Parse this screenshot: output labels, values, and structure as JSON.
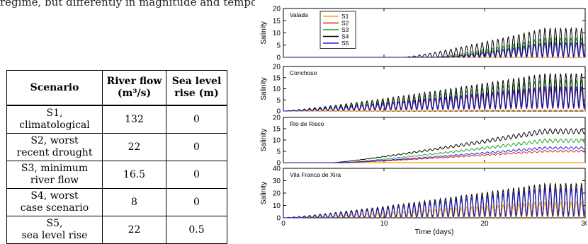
{
  "top_text": "regime, but differently in magnitude and temporal varying",
  "table": {
    "headers": [
      "Scenario",
      "River flow (m³/s)",
      "Sea level rise (m)"
    ],
    "header_lines": [
      [
        "Scenario"
      ],
      [
        "River flow",
        "(m³/s)"
      ],
      [
        "Sea level",
        "rise (m)"
      ]
    ],
    "rows": [
      {
        "scenario": [
          "S1,",
          "climatological"
        ],
        "flow": "132",
        "slr": "0"
      },
      {
        "scenario": [
          "S2, worst",
          "recent drought"
        ],
        "flow": "22",
        "slr": "0"
      },
      {
        "scenario": [
          "S3, minimum",
          "river flow"
        ],
        "flow": "16.5",
        "slr": "0"
      },
      {
        "scenario": [
          "S4, worst",
          "case scenario"
        ],
        "flow": "8",
        "slr": "0"
      },
      {
        "scenario": [
          "S5,",
          "sea level rise"
        ],
        "flow": "22",
        "slr": "0.5"
      }
    ]
  },
  "chart_data": {
    "type": "line",
    "xlabel": "Time (days)",
    "xlim": [
      0,
      30
    ],
    "xticks": [
      "0",
      "10",
      "20",
      "30"
    ],
    "ylabel": "Salinity",
    "legend": [
      "S1",
      "S2",
      "S3",
      "S4",
      "S5"
    ],
    "legend_placement": "top-left of first panel",
    "colors": {
      "S1": "#ffa500",
      "S2": "#e31a1c",
      "S3": "#1fa11f",
      "S4": "#000000",
      "S5": "#1f1fe0"
    },
    "tidal_period_days": 0.52,
    "panels": [
      {
        "station": "Valada",
        "ylim": [
          0,
          20
        ],
        "yticks": [
          "0",
          "5",
          "10",
          "15",
          "20"
        ],
        "series": [
          {
            "name": "S1",
            "onset": 30,
            "max": 0,
            "base_ratio": 0
          },
          {
            "name": "S2",
            "onset": 16,
            "max": 6,
            "base_ratio": 0
          },
          {
            "name": "S3",
            "onset": 15,
            "max": 8,
            "base_ratio": 0
          },
          {
            "name": "S4",
            "onset": 12,
            "max": 12,
            "base_ratio": 0
          },
          {
            "name": "S5",
            "onset": 16,
            "max": 6,
            "base_ratio": 0
          }
        ]
      },
      {
        "station": "Conchoso",
        "ylim": [
          0,
          20
        ],
        "yticks": [
          "0",
          "5",
          "10",
          "15",
          "20"
        ],
        "series": [
          {
            "name": "S1",
            "onset": 0,
            "max": 0.5,
            "base_ratio": 0
          },
          {
            "name": "S2",
            "onset": 0,
            "max": 10,
            "base_ratio": 0.1
          },
          {
            "name": "S3",
            "onset": 0,
            "max": 14,
            "base_ratio": 0.1
          },
          {
            "name": "S4",
            "onset": 0,
            "max": 17,
            "base_ratio": 0.1
          },
          {
            "name": "S5",
            "onset": 0,
            "max": 11,
            "base_ratio": 0.1
          }
        ]
      },
      {
        "station": "Rio de Risco",
        "ylim": [
          0,
          20
        ],
        "yticks": [
          "0",
          "5",
          "10",
          "15",
          "20"
        ],
        "series": [
          {
            "name": "S1",
            "onset": 30,
            "max": 0,
            "base_ratio": 0
          },
          {
            "name": "S2",
            "onset": 6,
            "max": 5.5,
            "base_ratio": 0.85
          },
          {
            "name": "S3",
            "onset": 6,
            "max": 10.5,
            "base_ratio": 0.85
          },
          {
            "name": "S4",
            "onset": 5,
            "max": 15,
            "base_ratio": 0.85
          },
          {
            "name": "S5",
            "onset": 6,
            "max": 7,
            "base_ratio": 0.85
          }
        ]
      },
      {
        "station": "Vila Franca de Xira",
        "ylim": [
          0,
          40
        ],
        "yticks": [
          "0",
          "10",
          "20",
          "30",
          "40"
        ],
        "series": [
          {
            "name": "S1",
            "onset": 0,
            "max": 13,
            "base_ratio": 0
          },
          {
            "name": "S2",
            "onset": 0,
            "max": 23,
            "base_ratio": 0.05
          },
          {
            "name": "S3",
            "onset": 0,
            "max": 24,
            "base_ratio": 0.05
          },
          {
            "name": "S4",
            "onset": 0,
            "max": 28,
            "base_ratio": 0.05
          },
          {
            "name": "S5",
            "onset": 0,
            "max": 24,
            "base_ratio": 0.05
          }
        ]
      }
    ]
  }
}
